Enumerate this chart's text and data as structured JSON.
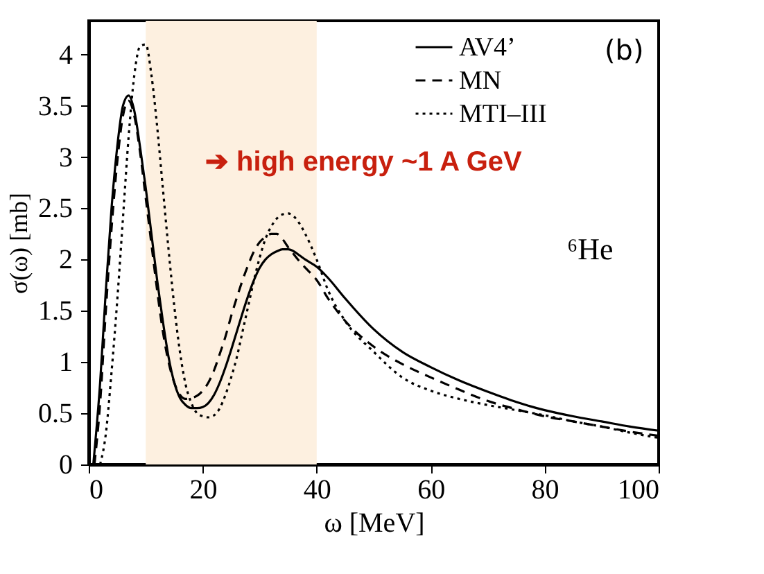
{
  "chart_data": {
    "type": "line",
    "xlabel": "ω  [MeV]",
    "ylabel": "σ(ω) [mb]",
    "xlim": [
      0,
      100
    ],
    "xticks": [
      0,
      20,
      40,
      60,
      80,
      100
    ],
    "ylim": [
      0,
      4.33
    ],
    "yticks": [
      0,
      0.5,
      1,
      1.5,
      2,
      2.5,
      3,
      3.5,
      4
    ],
    "legend": "top right",
    "grid": false,
    "marker": "none",
    "series": [
      {
        "name": "AV4’",
        "color": "#000000",
        "line_style": "solid",
        "x": [
          0.8,
          2,
          3,
          4,
          5,
          6,
          7,
          8,
          9,
          10,
          11,
          12,
          13,
          14,
          15,
          16,
          17,
          18,
          19,
          20,
          21,
          22,
          23,
          24,
          25,
          26,
          27,
          28,
          29,
          30,
          31,
          32,
          33,
          34,
          35,
          36,
          37,
          38,
          40,
          42,
          45,
          50,
          55,
          60,
          65,
          70,
          75,
          80,
          85,
          90,
          95,
          100
        ],
        "values": [
          0,
          0.8,
          1.7,
          2.5,
          3.1,
          3.5,
          3.6,
          3.45,
          3.1,
          2.7,
          2.25,
          1.8,
          1.4,
          1.05,
          0.8,
          0.65,
          0.58,
          0.55,
          0.55,
          0.56,
          0.6,
          0.68,
          0.8,
          0.95,
          1.12,
          1.3,
          1.48,
          1.65,
          1.8,
          1.92,
          2.0,
          2.05,
          2.08,
          2.1,
          2.1,
          2.08,
          2.04,
          2.0,
          1.93,
          1.82,
          1.62,
          1.32,
          1.1,
          0.95,
          0.82,
          0.71,
          0.61,
          0.53,
          0.47,
          0.42,
          0.37,
          0.33
        ]
      },
      {
        "name": "MN",
        "color": "#000000",
        "line_style": "dashed",
        "x": [
          1,
          2,
          3,
          4,
          5,
          6,
          7,
          8,
          9,
          10,
          11,
          12,
          13,
          14,
          15,
          16,
          17,
          18,
          19,
          20,
          21,
          22,
          23,
          24,
          25,
          26,
          27,
          28,
          29,
          30,
          31,
          32,
          33,
          34,
          35,
          36,
          37,
          38,
          40,
          42,
          45,
          50,
          55,
          60,
          65,
          70,
          75,
          80,
          85,
          90,
          95,
          100
        ],
        "values": [
          0,
          0.6,
          1.5,
          2.3,
          2.95,
          3.4,
          3.55,
          3.4,
          3.05,
          2.6,
          2.15,
          1.7,
          1.3,
          1.0,
          0.8,
          0.68,
          0.64,
          0.65,
          0.67,
          0.72,
          0.8,
          0.92,
          1.08,
          1.25,
          1.45,
          1.63,
          1.8,
          1.95,
          2.08,
          2.17,
          2.22,
          2.25,
          2.25,
          2.2,
          2.12,
          2.05,
          1.98,
          1.92,
          1.8,
          1.62,
          1.4,
          1.15,
          0.98,
          0.85,
          0.73,
          0.62,
          0.54,
          0.47,
          0.42,
          0.37,
          0.32,
          0.28
        ]
      },
      {
        "name": "MTI–III",
        "color": "#000000",
        "line_style": "dotted",
        "x": [
          2,
          3,
          4,
          5,
          6,
          7,
          8,
          9,
          10,
          11,
          12,
          13,
          14,
          15,
          16,
          17,
          18,
          19,
          20,
          21,
          22,
          23,
          24,
          25,
          26,
          27,
          28,
          29,
          30,
          31,
          32,
          33,
          34,
          35,
          36,
          37,
          38,
          40,
          42,
          45,
          50,
          55,
          60,
          65,
          70,
          75,
          80,
          85,
          90,
          95,
          100
        ],
        "values": [
          0,
          0.3,
          0.9,
          1.6,
          2.4,
          3.2,
          3.8,
          4.08,
          4.1,
          3.8,
          3.3,
          2.7,
          2.1,
          1.55,
          1.1,
          0.78,
          0.6,
          0.5,
          0.47,
          0.46,
          0.48,
          0.55,
          0.68,
          0.85,
          1.05,
          1.3,
          1.55,
          1.8,
          2.02,
          2.2,
          2.32,
          2.4,
          2.44,
          2.45,
          2.42,
          2.35,
          2.25,
          2.0,
          1.7,
          1.4,
          1.1,
          0.85,
          0.72,
          0.64,
          0.58,
          0.53,
          0.48,
          0.42,
          0.37,
          0.31,
          0.26
        ]
      }
    ],
    "bands": [
      {
        "axis": "x",
        "from": 10,
        "to": 40,
        "color": "#fdf0e0"
      }
    ],
    "annotations": [
      "(b)",
      "⁶He",
      "➔ high energy ~1 A GeV"
    ]
  }
}
